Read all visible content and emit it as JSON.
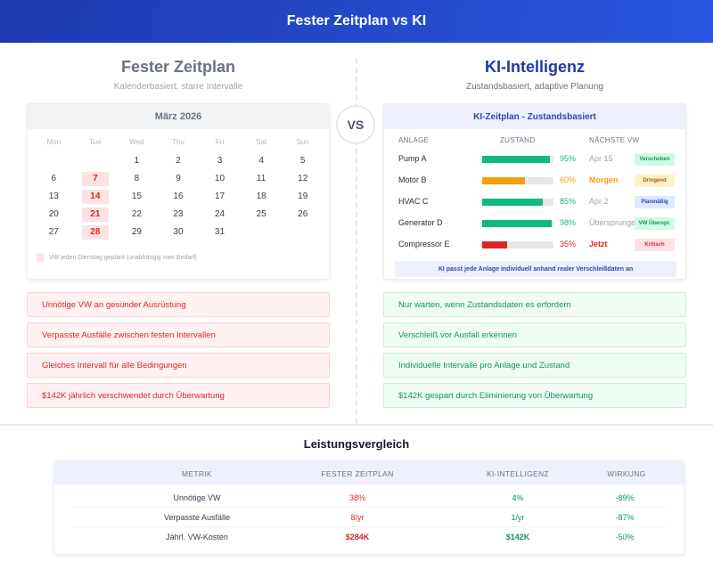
{
  "header": {
    "title": "Fester Zeitplan vs KI"
  },
  "left": {
    "title": "Fester Zeitplan",
    "subtitle": "Kalenderbasiert, starre Intervalle",
    "calendar": {
      "month": "März 2026",
      "weekdays": [
        "Mon",
        "Tue",
        "Wed",
        "Thu",
        "Fri",
        "Sat",
        "Sun"
      ],
      "weeks": [
        [
          "",
          "",
          "1",
          "2",
          "3",
          "4",
          "5"
        ],
        [
          "6",
          "7",
          "8",
          "9",
          "10",
          "11",
          "12"
        ],
        [
          "13",
          "14",
          "15",
          "16",
          "17",
          "18",
          "19"
        ],
        [
          "20",
          "21",
          "22",
          "23",
          "24",
          "25",
          "26"
        ],
        [
          "27",
          "28",
          "29",
          "30",
          "31",
          "",
          ""
        ]
      ],
      "highlighted_days": [
        "7",
        "14",
        "21",
        "28"
      ],
      "legend": "VW jeden Dienstag geplant (unabhängig vom Bedarf)"
    },
    "points": [
      "Unnötige VW an gesunder Ausrüstung",
      "Verpasste Ausfälle zwischen festen Intervallen",
      "Gleiches Intervall für alle Bedingungen",
      "$142K jährlich verschwendet durch Überwartung"
    ]
  },
  "vs": "VS",
  "right": {
    "title": "KI-Intelligenz",
    "subtitle": "Zustandsbasiert, adaptive Planung",
    "schedule": {
      "title": "KI-Zeitplan - Zustandsbasiert",
      "columns": {
        "asset": "ANLAGE",
        "condition": "ZUSTAND",
        "next": "NÄCHSTE VW"
      },
      "rows": [
        {
          "asset": "Pump A",
          "pct": 95,
          "pct_label": "95%",
          "next": "Apr 15",
          "badge": "Verschoben",
          "color": "#10b981",
          "next_color": "#9ca3af",
          "next_bold": false,
          "badge_bg": "#d1fae5",
          "badge_fg": "#10955e"
        },
        {
          "asset": "Motor B",
          "pct": 60,
          "pct_label": "60%",
          "next": "Morgen",
          "badge": "Dringend",
          "color": "#f59e0b",
          "next_color": "#f59e0b",
          "next_bold": true,
          "badge_bg": "#fef3c7",
          "badge_fg": "#b45309"
        },
        {
          "asset": "HVAC C",
          "pct": 85,
          "pct_label": "85%",
          "next": "Apr 2",
          "badge": "Planmäßig",
          "color": "#10b981",
          "next_color": "#9ca3af",
          "next_bold": false,
          "badge_bg": "#dbeafe",
          "badge_fg": "#2e45b8"
        },
        {
          "asset": "Generator D",
          "pct": 98,
          "pct_label": "98%",
          "next": "Übersprungen",
          "badge": "VW Überspr.",
          "color": "#10b981",
          "next_color": "#9ca3af",
          "next_bold": false,
          "badge_bg": "#d1fae5",
          "badge_fg": "#10955e"
        },
        {
          "asset": "Compressor E",
          "pct": 35,
          "pct_label": "35%",
          "next": "Jetzt",
          "badge": "Kritisch",
          "color": "#dc2626",
          "next_color": "#dc2626",
          "next_bold": true,
          "badge_bg": "#fee2e2",
          "badge_fg": "#dc2626"
        }
      ],
      "note": "KI passt jede Anlage individuell anhand realer Verschleißdaten an"
    },
    "points": [
      "Nur warten, wenn Zustandsdaten es erfordern",
      "Verschleiß vor Ausfall erkennen",
      "Individuelle Intervalle pro Anlage und Zustand",
      "$142K gespart durch Eliminierung von Überwartung"
    ]
  },
  "performance": {
    "title": "Leistungsvergleich",
    "columns": [
      "METRIK",
      "FESTER ZEITPLAN",
      "KI-INTELLIGENZ",
      "WIRKUNG"
    ],
    "rows": [
      {
        "metric": "Unnötige VW",
        "fixed": "38%",
        "ai": "4%",
        "impact": "-89%"
      },
      {
        "metric": "Verpasste Ausfälle",
        "fixed": "8/yr",
        "ai": "1/yr",
        "impact": "-87%"
      },
      {
        "metric": "Jährl. VW-Kosten",
        "fixed": "$284K",
        "ai": "$142K",
        "impact": "-50%"
      }
    ]
  }
}
